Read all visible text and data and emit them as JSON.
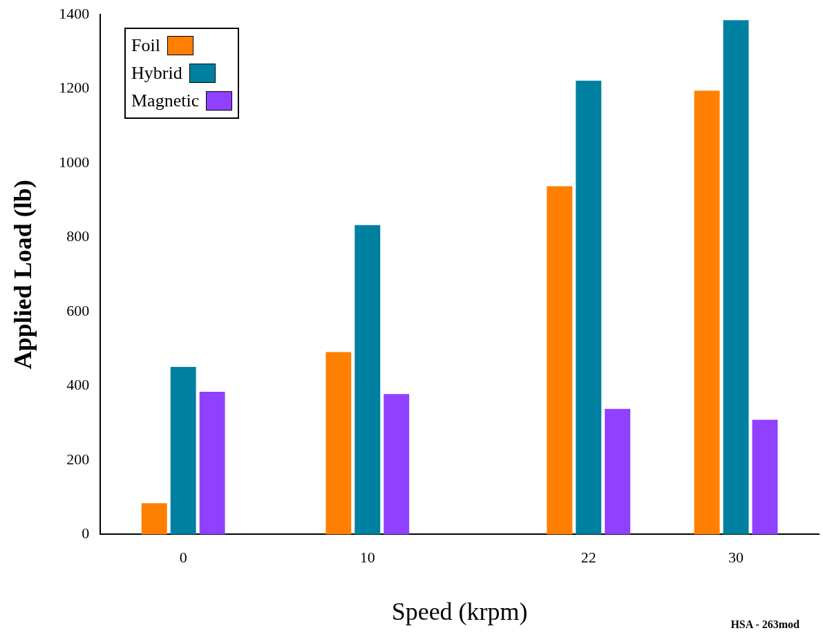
{
  "chart_data": {
    "type": "bar",
    "xlabel": "Speed (krpm)",
    "ylabel": "Applied Load (lb)",
    "x": [
      0,
      10,
      22,
      30
    ],
    "xlim": [
      -4.5,
      34.5
    ],
    "xticks": [
      0,
      10,
      22,
      30
    ],
    "ylim": [
      0,
      1400
    ],
    "yticks": [
      0,
      200,
      400,
      600,
      800,
      1000,
      1200,
      1400
    ],
    "series": [
      {
        "name": "Foil",
        "color": "#ff8000",
        "values": [
          84,
          491,
          938,
          1195
        ]
      },
      {
        "name": "Hybrid",
        "color": "#0080a0",
        "values": [
          451,
          833,
          1222,
          1385
        ]
      },
      {
        "name": "Magnetic",
        "color": "#9040ff",
        "values": [
          384,
          378,
          338,
          309
        ]
      }
    ],
    "grid": false,
    "legend": "top left",
    "annotations": [
      "HSA - 263mod"
    ]
  }
}
